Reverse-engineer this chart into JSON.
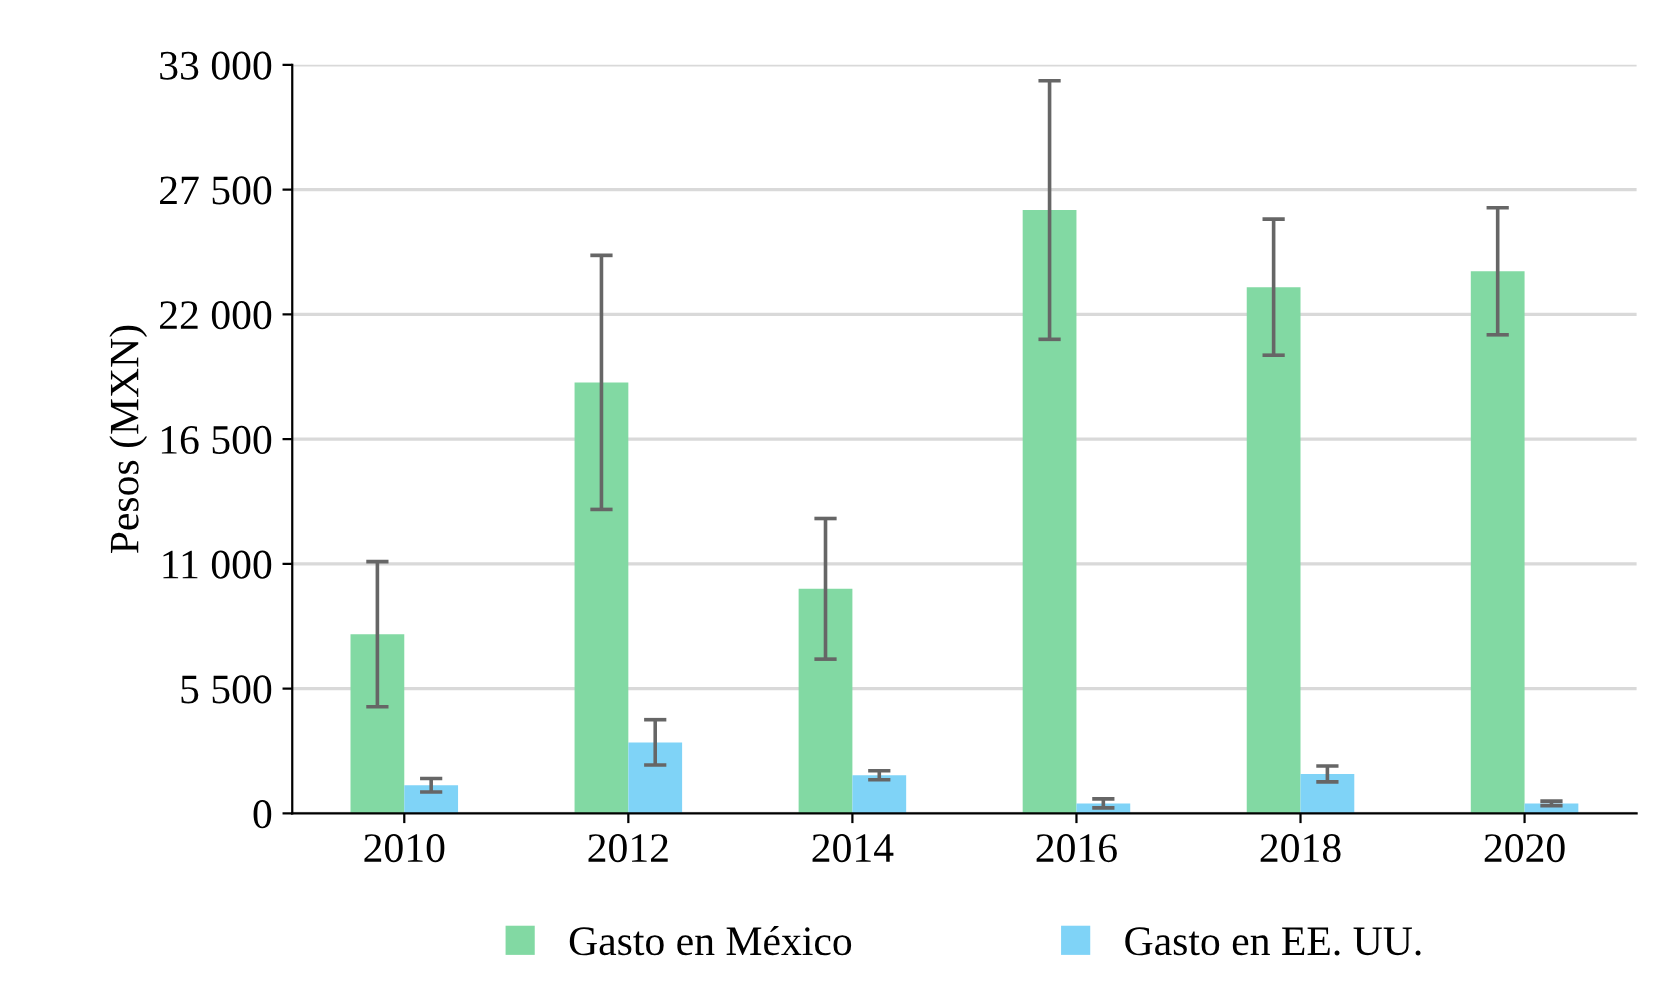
{
  "chart_data": {
    "type": "bar",
    "ylabel": "Pesos (MXN)",
    "categories": [
      "2010",
      "2012",
      "2014",
      "2016",
      "2018",
      "2020"
    ],
    "series": [
      {
        "name": "Gasto en México",
        "color": "#82d9a3",
        "values": [
          7900,
          19000,
          9900,
          26600,
          23200,
          23900
        ],
        "errors": [
          3200,
          5600,
          3100,
          5700,
          3000,
          2800
        ]
      },
      {
        "name": "Gasto en EE. UU.",
        "color": "#7fd3f7",
        "values": [
          1240,
          3130,
          1680,
          440,
          1740,
          440
        ],
        "errors": [
          300,
          1000,
          200,
          200,
          350,
          100
        ]
      }
    ],
    "ylim": [
      0,
      33000
    ],
    "yticks": [
      0,
      {
        "value": 5500,
        "label": "5 500"
      },
      {
        "value": 11000,
        "label": "11 000"
      },
      {
        "value": 16500,
        "label": "16 500"
      },
      {
        "value": 22000,
        "label": "22 000"
      },
      {
        "value": 27500,
        "label": "27 500"
      },
      {
        "value": 33000,
        "label": "33 000"
      }
    ],
    "grid": "y",
    "legend": "bottom"
  }
}
